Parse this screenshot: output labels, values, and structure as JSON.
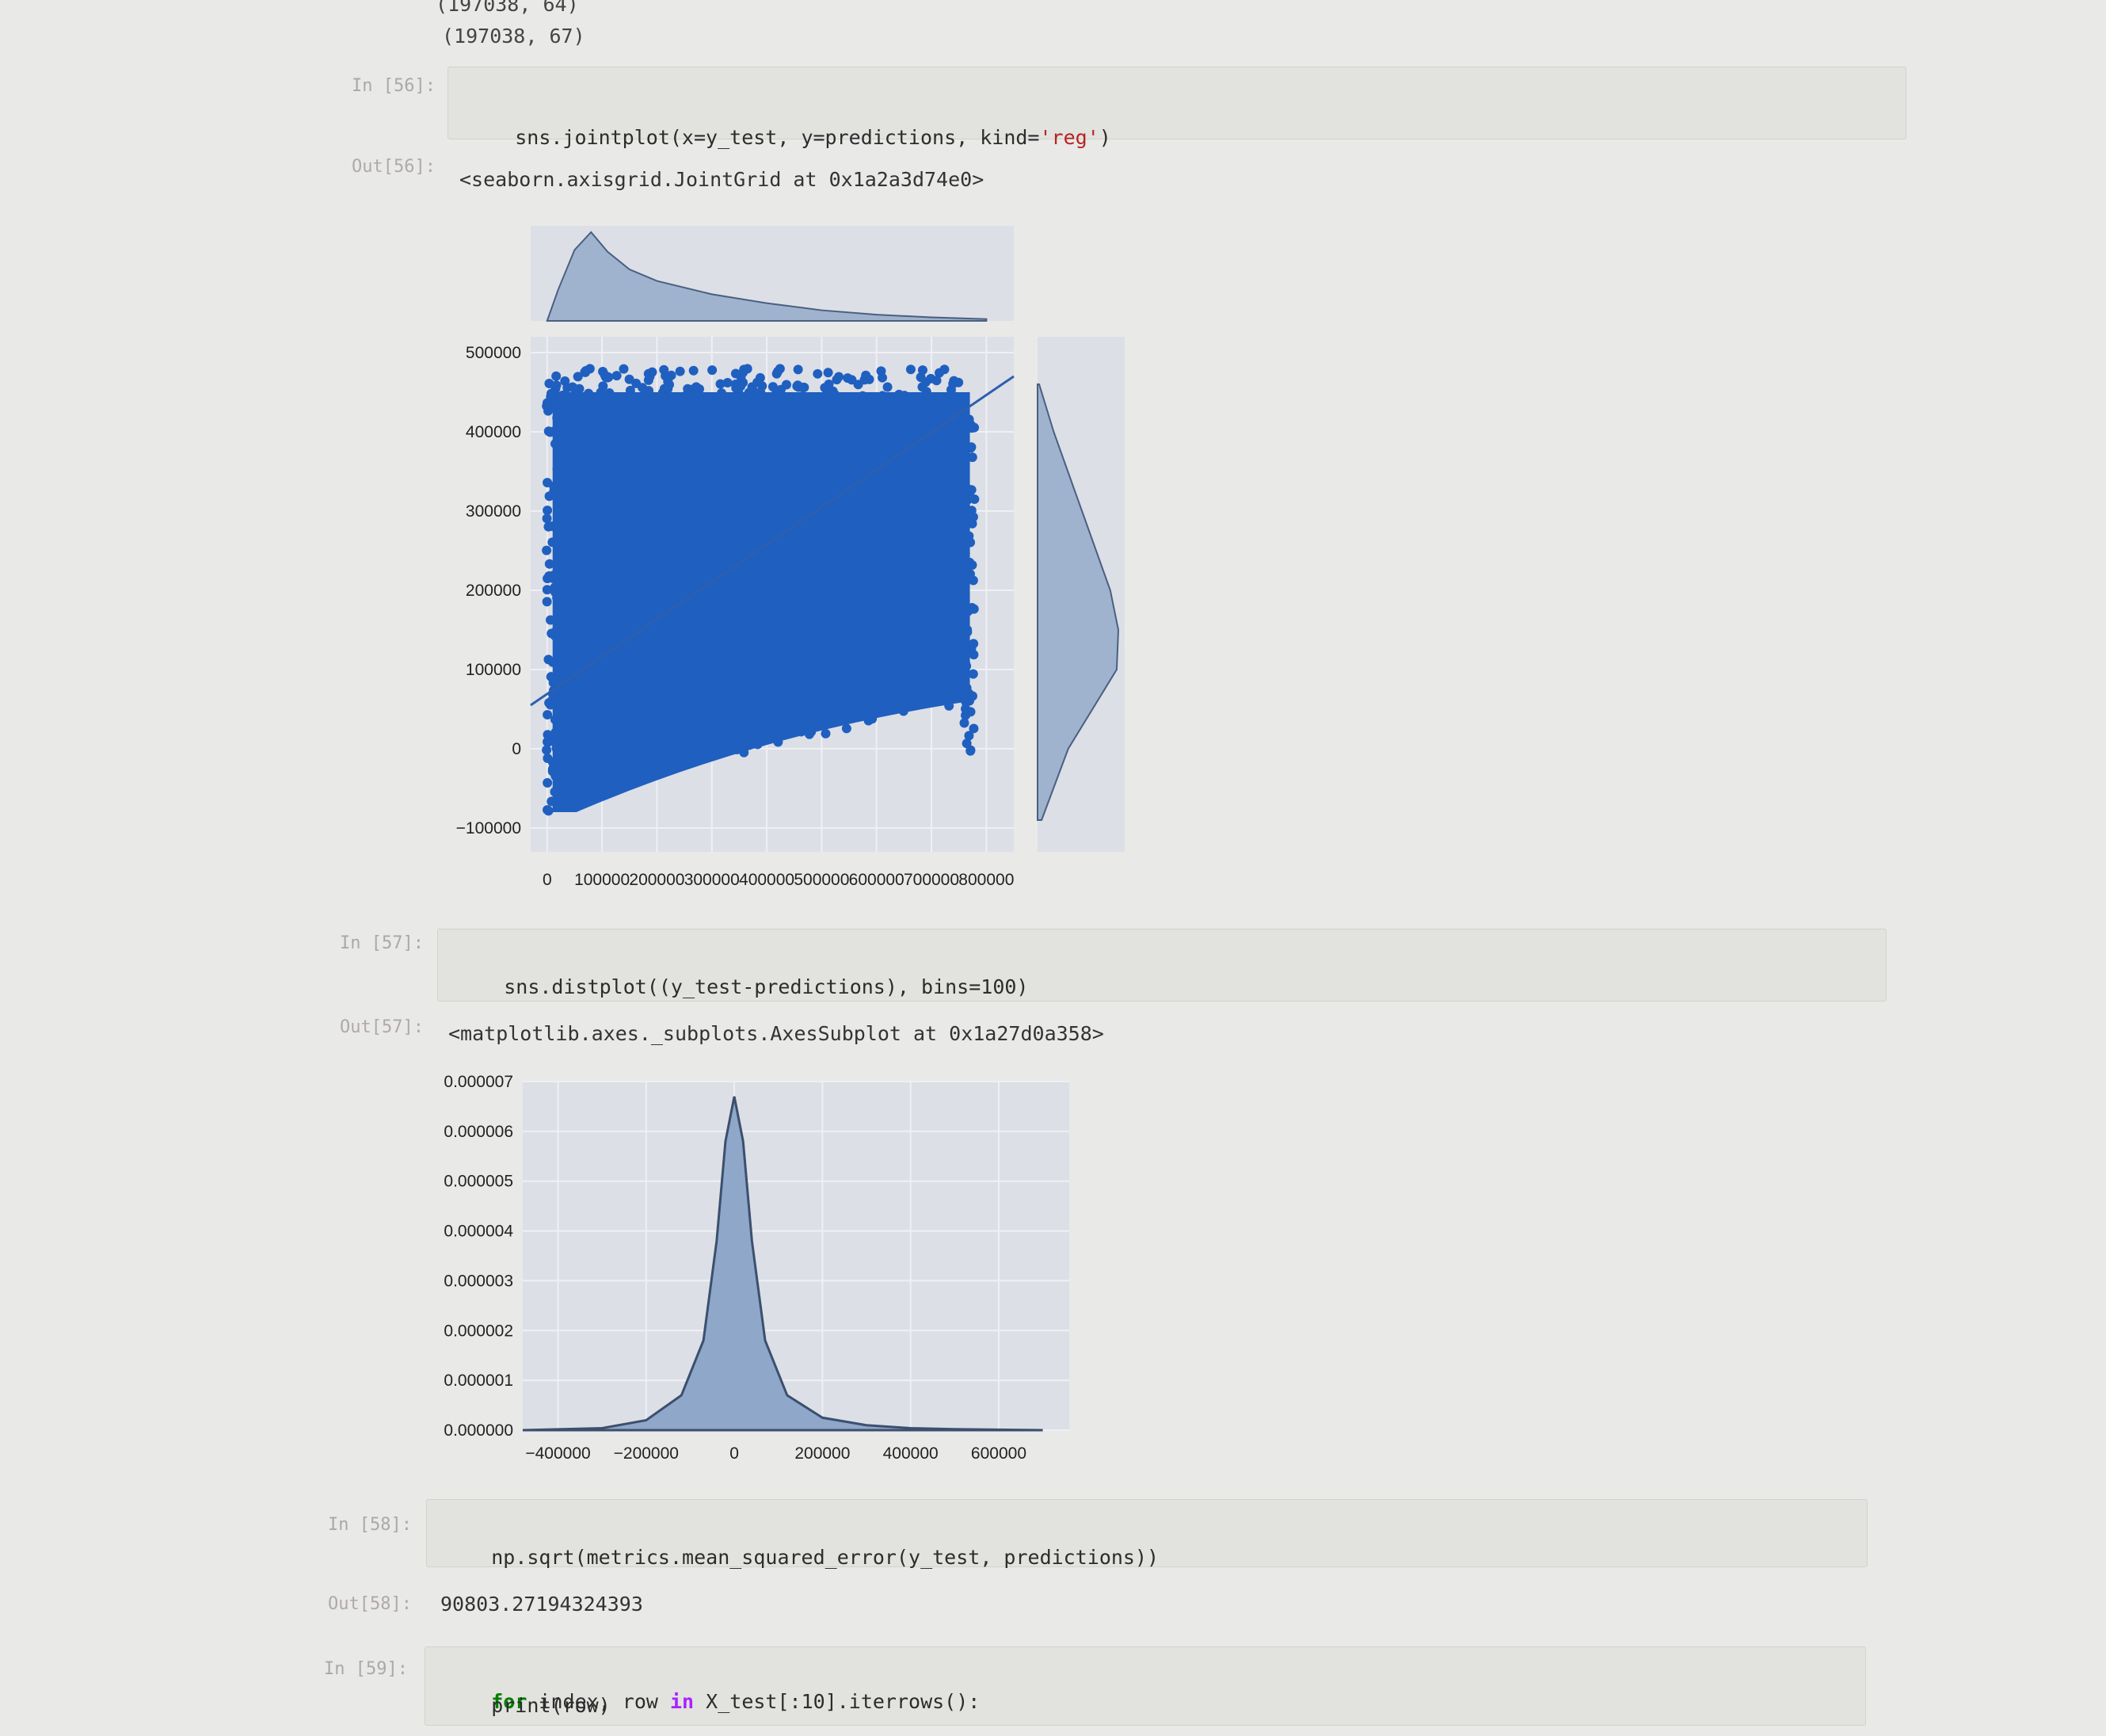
{
  "stream_output": {
    "line1": "(197038, 64)",
    "line2": "(197038, 67)"
  },
  "cells": [
    {
      "in_prompt": "In [56]:",
      "code_parts": [
        "sns.jointplot(x=y_test, y=predictions, kind=",
        "'reg'",
        ")"
      ],
      "out_prompt": "Out[56]:",
      "out_text": "<seaborn.axisgrid.JointGrid at 0x1a2a3d74e0>"
    },
    {
      "in_prompt": "In [57]:",
      "code_parts": [
        "sns.distplot((y_test-predictions), bins=100)"
      ],
      "out_prompt": "Out[57]:",
      "out_text": "<matplotlib.axes._subplots.AxesSubplot at 0x1a27d0a358>"
    },
    {
      "in_prompt": "In [58]:",
      "code_parts": [
        "np.sqrt(metrics.mean_squared_error(y_test, predictions))"
      ],
      "out_prompt": "Out[58]:",
      "out_text": "90803.27194324393"
    },
    {
      "in_prompt": "In [59]:",
      "code_parts": [
        "for",
        " index, row ",
        "in",
        " X_test[:10].iterrows():"
      ],
      "code_line2": "    print(row)"
    }
  ],
  "chart_data": [
    {
      "type": "scatter",
      "title": "",
      "xlabel": "",
      "ylabel": "",
      "x_ticks": [
        "0",
        "100000",
        "200000",
        "300000",
        "400000",
        "500000",
        "600000",
        "700000",
        "800000"
      ],
      "y_ticks": [
        "500000",
        "400000",
        "300000",
        "200000",
        "100000",
        "0",
        "−100000"
      ],
      "xlim": [
        -30000,
        850000
      ],
      "ylim": [
        -130000,
        520000
      ],
      "scatter_extent": {
        "x": [
          10000,
          770000
        ],
        "y": [
          -80000,
          470000
        ]
      },
      "regression_line": [
        [
          -30000,
          55000
        ],
        [
          850000,
          470000
        ]
      ],
      "marginal_x_kde": [
        [
          0,
          0.0
        ],
        [
          20000,
          0.35
        ],
        [
          50000,
          0.8
        ],
        [
          80000,
          1.0
        ],
        [
          110000,
          0.78
        ],
        [
          150000,
          0.58
        ],
        [
          200000,
          0.45
        ],
        [
          300000,
          0.3
        ],
        [
          400000,
          0.2
        ],
        [
          500000,
          0.12
        ],
        [
          600000,
          0.07
        ],
        [
          700000,
          0.04
        ],
        [
          800000,
          0.02
        ]
      ],
      "marginal_y_kde": [
        [
          -90000,
          0.05
        ],
        [
          0,
          0.38
        ],
        [
          100000,
          0.98
        ],
        [
          150000,
          1.0
        ],
        [
          200000,
          0.9
        ],
        [
          300000,
          0.55
        ],
        [
          400000,
          0.2
        ],
        [
          460000,
          0.02
        ]
      ],
      "grid": true,
      "point_color": "#1f5fbf"
    },
    {
      "type": "area",
      "title": "",
      "xlabel": "",
      "ylabel": "",
      "x_ticks": [
        "−400000",
        "−200000",
        "0",
        "200000",
        "400000",
        "600000"
      ],
      "y_ticks": [
        "0.000007",
        "0.000006",
        "0.000005",
        "0.000004",
        "0.000003",
        "0.000002",
        "0.000001",
        "0.000000"
      ],
      "xlim": [
        -480000,
        760000
      ],
      "ylim": [
        0,
        7e-06
      ],
      "kde": [
        [
          -480000,
          0.0
        ],
        [
          -300000,
          4e-08
        ],
        [
          -200000,
          2e-07
        ],
        [
          -120000,
          7e-07
        ],
        [
          -70000,
          1.8e-06
        ],
        [
          -40000,
          3.8e-06
        ],
        [
          -20000,
          5.8e-06
        ],
        [
          0,
          6.7e-06
        ],
        [
          20000,
          5.8e-06
        ],
        [
          40000,
          3.8e-06
        ],
        [
          70000,
          1.8e-06
        ],
        [
          120000,
          7e-07
        ],
        [
          200000,
          2.5e-07
        ],
        [
          300000,
          1e-07
        ],
        [
          400000,
          4e-08
        ],
        [
          500000,
          2e-08
        ],
        [
          700000,
          0.0
        ]
      ],
      "grid": true,
      "fill_color": "#8fa7c8",
      "line_color": "#3c4f6e"
    }
  ]
}
